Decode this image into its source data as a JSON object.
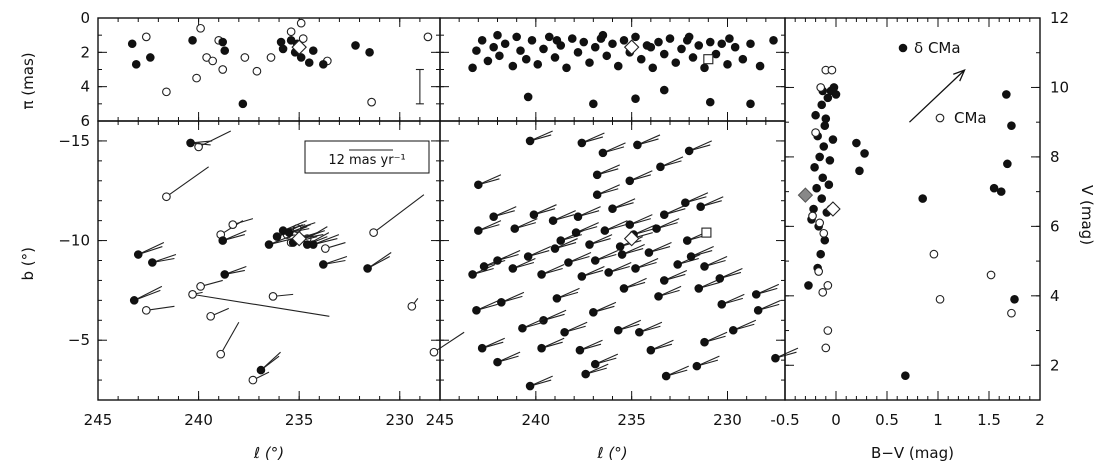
{
  "chart_data": [
    {
      "panel": "top-left",
      "type": "scatter",
      "xlim": [
        245,
        228
      ],
      "ylim": [
        0,
        6
      ],
      "ylabel": "π (mas)",
      "yticks": [
        0,
        2,
        4,
        6
      ],
      "filled": [
        [
          243.3,
          1.5
        ],
        [
          243.1,
          2.7
        ],
        [
          242.4,
          2.3
        ],
        [
          240.3,
          1.3
        ],
        [
          238.8,
          1.4
        ],
        [
          238.7,
          1.9
        ],
        [
          237.8,
          5.0
        ],
        [
          235.9,
          1.4
        ],
        [
          235.8,
          1.8
        ],
        [
          235.4,
          1.3
        ],
        [
          235.2,
          2.0
        ],
        [
          235.1,
          1.5
        ],
        [
          234.9,
          2.3
        ],
        [
          234.5,
          2.6
        ],
        [
          234.3,
          1.9
        ],
        [
          233.8,
          2.7
        ],
        [
          232.2,
          1.6
        ],
        [
          231.5,
          2.0
        ]
      ],
      "open": [
        [
          242.6,
          1.1
        ],
        [
          241.6,
          4.3
        ],
        [
          240.1,
          3.5
        ],
        [
          239.9,
          0.6
        ],
        [
          239.6,
          2.3
        ],
        [
          239.3,
          2.5
        ],
        [
          239.0,
          1.3
        ],
        [
          238.8,
          3.0
        ],
        [
          237.7,
          2.3
        ],
        [
          237.1,
          3.1
        ],
        [
          236.4,
          2.3
        ],
        [
          235.4,
          0.8
        ],
        [
          234.9,
          0.3
        ],
        [
          235.1,
          1.7
        ],
        [
          234.8,
          1.2
        ],
        [
          233.6,
          2.5
        ],
        [
          231.4,
          4.9
        ],
        [
          228.6,
          1.1
        ]
      ],
      "diamond": [
        [
          235.0,
          1.7
        ]
      ],
      "errorbar": {
        "x": 229.0,
        "y_low": 3.0,
        "y_high": 5.0
      }
    },
    {
      "panel": "top-middle",
      "type": "scatter",
      "xlim": [
        245,
        227
      ],
      "ylim": [
        0,
        6
      ],
      "filled": [
        [
          243.3,
          2.9
        ],
        [
          243.1,
          1.9
        ],
        [
          242.8,
          1.3
        ],
        [
          242.5,
          2.5
        ],
        [
          242.2,
          1.7
        ],
        [
          241.9,
          2.2
        ],
        [
          241.6,
          1.5
        ],
        [
          241.2,
          2.8
        ],
        [
          241.0,
          1.1
        ],
        [
          240.8,
          1.9
        ],
        [
          240.5,
          2.4
        ],
        [
          240.2,
          1.3
        ],
        [
          239.9,
          2.7
        ],
        [
          239.6,
          1.8
        ],
        [
          239.3,
          1.1
        ],
        [
          239.0,
          2.3
        ],
        [
          238.7,
          1.6
        ],
        [
          238.4,
          2.9
        ],
        [
          238.1,
          1.2
        ],
        [
          237.8,
          2.0
        ],
        [
          237.5,
          1.4
        ],
        [
          237.2,
          2.6
        ],
        [
          236.9,
          1.7
        ],
        [
          236.6,
          1.2
        ],
        [
          236.3,
          2.2
        ],
        [
          236.0,
          1.5
        ],
        [
          235.7,
          2.8
        ],
        [
          235.4,
          1.3
        ],
        [
          235.1,
          2.0
        ],
        [
          234.8,
          1.1
        ],
        [
          234.5,
          2.4
        ],
        [
          234.2,
          1.6
        ],
        [
          233.9,
          2.9
        ],
        [
          233.6,
          1.4
        ],
        [
          233.3,
          2.1
        ],
        [
          233.0,
          1.2
        ],
        [
          232.7,
          2.6
        ],
        [
          232.4,
          1.8
        ],
        [
          232.1,
          1.3
        ],
        [
          231.8,
          2.3
        ],
        [
          231.5,
          1.6
        ],
        [
          231.2,
          2.9
        ],
        [
          230.9,
          1.4
        ],
        [
          230.6,
          2.1
        ],
        [
          230.3,
          1.5
        ],
        [
          230.0,
          2.7
        ],
        [
          229.6,
          1.7
        ],
        [
          229.2,
          2.4
        ],
        [
          228.8,
          1.5
        ],
        [
          228.3,
          2.8
        ],
        [
          227.6,
          1.3
        ],
        [
          240.4,
          4.6
        ],
        [
          237.0,
          5.0
        ],
        [
          234.8,
          4.7
        ],
        [
          233.3,
          4.2
        ],
        [
          230.9,
          4.9
        ],
        [
          228.8,
          5.0
        ],
        [
          242.0,
          1.0
        ],
        [
          238.9,
          1.3
        ],
        [
          236.5,
          1.0
        ],
        [
          234.0,
          1.7
        ],
        [
          232.0,
          1.1
        ],
        [
          229.9,
          1.2
        ]
      ],
      "open": [],
      "diamond": [
        [
          235.0,
          1.7
        ]
      ],
      "square": [
        [
          231.0,
          2.4
        ]
      ]
    },
    {
      "panel": "bottom-left",
      "type": "scatter",
      "xlim": [
        245,
        228
      ],
      "ylim": [
        -16,
        -2
      ],
      "xlabel": "ℓ (°)",
      "ylabel": "b (°)",
      "xticks": [
        245,
        240,
        235,
        230
      ],
      "yticks": [
        -5,
        -10,
        -15
      ],
      "filled_pm": [
        [
          243.2,
          -7.0,
          -1.3,
          -0.5
        ],
        [
          243.0,
          -9.3,
          -1.2,
          -0.4
        ],
        [
          242.3,
          -8.9,
          -1.1,
          -0.2
        ],
        [
          240.4,
          -14.9,
          -1.0,
          0.1
        ],
        [
          238.8,
          -10.0,
          -1.1,
          -0.3
        ],
        [
          238.7,
          -8.3,
          -1.0,
          -0.2
        ],
        [
          236.9,
          -3.5,
          -0.9,
          -0.7
        ],
        [
          236.5,
          -9.8,
          -1.2,
          -0.3
        ],
        [
          236.1,
          -10.2,
          -1.2,
          -0.4
        ],
        [
          235.8,
          -10.5,
          -1.1,
          -0.3
        ],
        [
          235.5,
          -10.4,
          -1.0,
          -0.2
        ],
        [
          235.3,
          -9.9,
          -1.2,
          -0.3
        ],
        [
          234.9,
          -10.1,
          -1.1,
          -0.2
        ],
        [
          234.6,
          -9.8,
          -1.0,
          -0.4
        ],
        [
          234.3,
          -9.8,
          -1.2,
          -0.3
        ],
        [
          233.8,
          -8.8,
          -1.1,
          -0.2
        ],
        [
          231.6,
          -8.6,
          -1.1,
          -0.6
        ],
        [
          232.0,
          -14.5,
          -1.5,
          0.0
        ]
      ],
      "open_pm": [
        [
          242.6,
          -6.5,
          -1.4,
          -0.2
        ],
        [
          241.6,
          -12.2,
          -2.1,
          -1.5
        ],
        [
          240.3,
          -7.3,
          -0.5,
          -0.1
        ],
        [
          239.9,
          -7.7,
          -1.1,
          -0.3
        ],
        [
          239.4,
          -6.2,
          -0.9,
          -0.4
        ],
        [
          238.9,
          -4.3,
          -0.9,
          -1.6
        ],
        [
          238.9,
          -10.3,
          -1.1,
          -0.7
        ],
        [
          238.3,
          -10.8,
          -1.0,
          -0.3
        ],
        [
          237.3,
          -3.0,
          -0.8,
          -0.4
        ],
        [
          236.3,
          -7.2,
          -1.0,
          -0.1
        ],
        [
          235.6,
          -10.3,
          -1.0,
          -0.4
        ],
        [
          235.4,
          -9.9,
          -1.0,
          -0.4
        ],
        [
          235.1,
          -10.6,
          -0.9,
          -0.3
        ],
        [
          234.6,
          -10.1,
          -1.0,
          -0.6
        ],
        [
          233.7,
          -9.6,
          -1.0,
          -0.3
        ],
        [
          231.3,
          -10.4,
          -2.5,
          -1.9
        ],
        [
          229.4,
          -6.7,
          -0.3,
          -0.4
        ],
        [
          228.3,
          -4.4,
          -1.5,
          -1.0
        ],
        [
          240.0,
          -14.7,
          -1.6,
          -0.8
        ]
      ],
      "long_pm_line": [
        [
          240.3,
          -7.3
        ],
        [
          233.5,
          -6.2
        ]
      ],
      "diamond_pm": [
        [
          235.0,
          -10.1,
          -0.9,
          -0.3
        ]
      ],
      "scale_label": "12 mas yr⁻¹"
    },
    {
      "panel": "bottom-middle",
      "type": "scatter",
      "xlim": [
        245,
        227
      ],
      "ylim": [
        -16,
        -2
      ],
      "xlabel": "ℓ (°)",
      "xticks": [
        245,
        240,
        235,
        230
      ],
      "filled_pm": [
        [
          242.8,
          -4.6
        ],
        [
          242.0,
          -3.9
        ],
        [
          240.3,
          -2.7
        ],
        [
          239.7,
          -4.6
        ],
        [
          239.6,
          -6.0
        ],
        [
          238.5,
          -5.4
        ],
        [
          237.7,
          -4.5
        ],
        [
          237.4,
          -3.3
        ],
        [
          236.9,
          -3.8
        ],
        [
          235.7,
          -5.5
        ],
        [
          234.6,
          -5.4
        ],
        [
          234.0,
          -4.5
        ],
        [
          233.2,
          -3.2
        ],
        [
          231.6,
          -3.7
        ],
        [
          231.2,
          -4.9
        ],
        [
          229.7,
          -5.5
        ],
        [
          228.4,
          -6.5
        ],
        [
          227.5,
          -4.1
        ],
        [
          243.1,
          -6.5
        ],
        [
          241.8,
          -6.9
        ],
        [
          240.7,
          -5.6
        ],
        [
          238.9,
          -7.1
        ],
        [
          237.0,
          -6.4
        ],
        [
          235.4,
          -7.6
        ],
        [
          233.6,
          -7.2
        ],
        [
          231.5,
          -7.6
        ],
        [
          230.3,
          -6.8
        ],
        [
          228.5,
          -7.3
        ],
        [
          243.3,
          -8.3
        ],
        [
          242.7,
          -8.7
        ],
        [
          242.0,
          -9.0
        ],
        [
          241.2,
          -8.6
        ],
        [
          240.4,
          -9.2
        ],
        [
          239.7,
          -8.3
        ],
        [
          239.0,
          -9.6
        ],
        [
          238.3,
          -8.9
        ],
        [
          237.6,
          -8.2
        ],
        [
          236.9,
          -9.0
        ],
        [
          236.2,
          -8.4
        ],
        [
          235.5,
          -9.3
        ],
        [
          234.8,
          -8.6
        ],
        [
          234.1,
          -9.4
        ],
        [
          233.3,
          -8.0
        ],
        [
          232.6,
          -8.8
        ],
        [
          231.9,
          -9.2
        ],
        [
          231.2,
          -8.7
        ],
        [
          230.4,
          -8.1
        ],
        [
          238.7,
          -10.0
        ],
        [
          237.9,
          -10.4
        ],
        [
          237.2,
          -9.8
        ],
        [
          236.4,
          -10.5
        ],
        [
          235.6,
          -9.7
        ],
        [
          234.9,
          -10.3
        ],
        [
          233.7,
          -10.6
        ],
        [
          232.1,
          -10.0
        ],
        [
          243.0,
          -10.5
        ],
        [
          242.2,
          -11.2
        ],
        [
          241.1,
          -10.6
        ],
        [
          240.1,
          -11.3
        ],
        [
          239.1,
          -11.0
        ],
        [
          237.8,
          -11.2
        ],
        [
          236.0,
          -11.6
        ],
        [
          235.1,
          -10.8
        ],
        [
          233.3,
          -11.3
        ],
        [
          232.2,
          -11.9
        ],
        [
          231.4,
          -11.7
        ],
        [
          243.0,
          -12.8
        ],
        [
          236.8,
          -12.3
        ],
        [
          236.8,
          -13.3
        ],
        [
          235.1,
          -13.0
        ],
        [
          233.5,
          -13.7
        ],
        [
          240.3,
          -15.0
        ],
        [
          237.6,
          -14.9
        ],
        [
          236.5,
          -14.4
        ],
        [
          234.7,
          -14.8
        ],
        [
          232.0,
          -14.5
        ]
      ],
      "diamond_pm": [
        [
          235.0,
          -10.1
        ]
      ],
      "square": [
        [
          231.1,
          -10.4
        ]
      ]
    },
    {
      "panel": "right",
      "type": "scatter",
      "xlim": [
        -0.5,
        2.0
      ],
      "ylim": [
        12,
        1
      ],
      "xlabel": "B−V (mag)",
      "ylabel": "V (mag)",
      "xticks": [
        -0.5,
        0,
        0.5,
        1,
        1.5,
        2
      ],
      "yticks": [
        2,
        4,
        6,
        8,
        10,
        12
      ],
      "legend": [
        {
          "marker": "filled",
          "label": "δ CMa"
        },
        {
          "marker": "open",
          "label": "CMa"
        }
      ],
      "filled": [
        [
          -0.27,
          4.3
        ],
        [
          -0.18,
          4.8
        ],
        [
          -0.15,
          5.2
        ],
        [
          -0.11,
          5.6
        ],
        [
          -0.17,
          6.0
        ],
        [
          -0.22,
          6.5
        ],
        [
          -0.14,
          6.8
        ],
        [
          -0.19,
          7.1
        ],
        [
          -0.13,
          7.4
        ],
        [
          -0.21,
          7.7
        ],
        [
          -0.16,
          8.0
        ],
        [
          -0.12,
          8.3
        ],
        [
          -0.18,
          8.6
        ],
        [
          -0.11,
          8.9
        ],
        [
          -0.2,
          9.2
        ],
        [
          -0.14,
          9.5
        ],
        [
          -0.08,
          9.7
        ],
        [
          -0.05,
          9.9
        ],
        [
          -0.02,
          10.0
        ],
        [
          -0.24,
          6.2
        ],
        [
          -0.09,
          6.4
        ],
        [
          -0.06,
          7.9
        ],
        [
          -0.03,
          8.5
        ],
        [
          -0.1,
          9.1
        ],
        [
          0.0,
          9.8
        ],
        [
          -0.13,
          9.9
        ],
        [
          -0.07,
          7.2
        ],
        [
          0.23,
          7.6
        ],
        [
          0.2,
          8.4
        ],
        [
          0.28,
          8.1
        ],
        [
          0.85,
          6.8
        ],
        [
          1.62,
          7.0
        ],
        [
          1.55,
          7.1
        ],
        [
          1.68,
          7.8
        ],
        [
          1.72,
          8.9
        ],
        [
          1.67,
          9.8
        ],
        [
          1.75,
          3.9
        ],
        [
          0.68,
          1.7
        ]
      ],
      "open": [
        [
          -0.1,
          2.5
        ],
        [
          -0.08,
          3.0
        ],
        [
          -0.13,
          4.1
        ],
        [
          -0.08,
          4.3
        ],
        [
          -0.17,
          4.7
        ],
        [
          -0.12,
          5.8
        ],
        [
          -0.16,
          6.1
        ],
        [
          -0.05,
          6.5
        ],
        [
          -0.2,
          8.7
        ],
        [
          -0.15,
          10.0
        ],
        [
          -0.1,
          10.5
        ],
        [
          -0.04,
          10.5
        ],
        [
          -0.23,
          6.3
        ],
        [
          0.96,
          5.2
        ],
        [
          1.52,
          4.6
        ],
        [
          1.72,
          3.5
        ],
        [
          1.02,
          3.9
        ]
      ],
      "diamond": [
        [
          -0.3,
          6.9
        ],
        [
          -0.03,
          6.5
        ]
      ],
      "reddening_arrow": {
        "from": [
          0.72,
          9.0
        ],
        "to": [
          1.26,
          10.5
        ]
      }
    }
  ]
}
